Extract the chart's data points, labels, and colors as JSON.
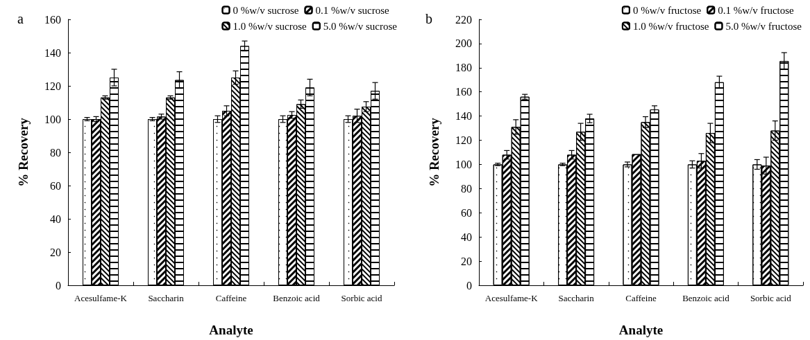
{
  "chart_data": [
    {
      "type": "bar",
      "title": "a",
      "xlabel": "Analyte",
      "ylabel": "% Recovery",
      "categories": [
        "Acesulfame-K",
        "Saccharin",
        "Caffeine",
        "Benzoic acid",
        "Sorbic acid"
      ],
      "series": [
        {
          "name": "0 %w/v sucrose",
          "color": "#ffffff",
          "values": [
            100,
            100,
            100,
            100,
            100
          ],
          "errors": [
            1,
            1,
            2,
            2,
            2
          ]
        },
        {
          "name": "0.1 %w/v sucrose",
          "color": "#ffffff",
          "values": [
            100,
            101.5,
            105,
            102.5,
            102
          ],
          "errors": [
            1.5,
            1.5,
            3,
            2,
            4
          ]
        },
        {
          "name": "1.0 %w/v sucrose",
          "color": "#ffffff",
          "values": [
            113,
            113,
            125,
            109,
            107.5
          ],
          "errors": [
            1,
            1,
            4,
            2.5,
            3
          ]
        },
        {
          "name": "5.0 %w/v sucrose",
          "color": "#ffffff",
          "values": [
            125,
            123.5,
            144,
            119,
            117
          ],
          "errors": [
            5,
            5,
            3,
            5,
            5
          ]
        }
      ],
      "ylim": [
        0,
        160
      ],
      "yticks": [
        0,
        20,
        40,
        60,
        80,
        100,
        120,
        140,
        160
      ],
      "grid": false,
      "legend": "top right"
    },
    {
      "type": "bar",
      "title": "b",
      "xlabel": "Analyte",
      "ylabel": "% Recovery",
      "categories": [
        "Acesulfame-K",
        "Saccharin",
        "Caffeine",
        "Benzoic acid",
        "Sorbic acid"
      ],
      "series": [
        {
          "name": "0 %w/v fructose",
          "color": "#ffffff",
          "values": [
            100,
            100,
            100,
            100,
            100
          ],
          "errors": [
            1,
            1,
            2,
            3,
            4
          ]
        },
        {
          "name": "0.1 %w/v fructose",
          "color": "#ffffff",
          "values": [
            108,
            108,
            108.5,
            103,
            99
          ],
          "errors": [
            3.5,
            3.5,
            null,
            6,
            7
          ]
        },
        {
          "name": "1.0 %w/v fructose",
          "color": "#ffffff",
          "values": [
            131,
            127,
            135,
            126,
            128
          ],
          "errors": [
            6,
            7,
            4.5,
            8,
            8
          ]
        },
        {
          "name": "5.0 %w/v fructose",
          "color": "#ffffff",
          "values": [
            156,
            138,
            145.5,
            168,
            185.5
          ],
          "errors": [
            2,
            3.5,
            3,
            5,
            7
          ]
        }
      ],
      "ylim": [
        0,
        220
      ],
      "yticks": [
        0,
        20,
        40,
        60,
        80,
        100,
        120,
        140,
        160,
        180,
        200,
        220
      ],
      "grid": false,
      "legend": "top right"
    }
  ]
}
